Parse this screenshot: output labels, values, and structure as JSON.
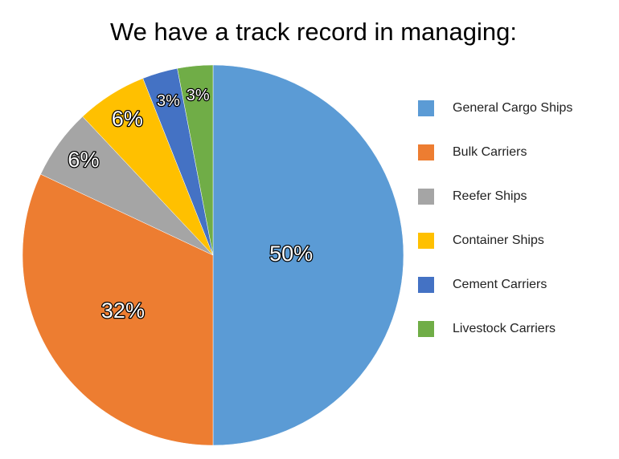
{
  "chart_data": {
    "type": "pie",
    "title": "We have a track record in managing:",
    "categories": [
      "General Cargo Ships",
      "Bulk Carriers",
      "Reefer Ships",
      "Container Ships",
      "Cement Carriers",
      "Livestock Carriers"
    ],
    "values": [
      50,
      32,
      6,
      6,
      3,
      3
    ],
    "value_labels": [
      "50%",
      "32%",
      "6%",
      "6%",
      "3%",
      "3%"
    ],
    "colors": [
      "#5b9bd5",
      "#ed7d31",
      "#a5a5a5",
      "#ffc000",
      "#4472c4",
      "#70ad47"
    ],
    "legend": "right"
  }
}
